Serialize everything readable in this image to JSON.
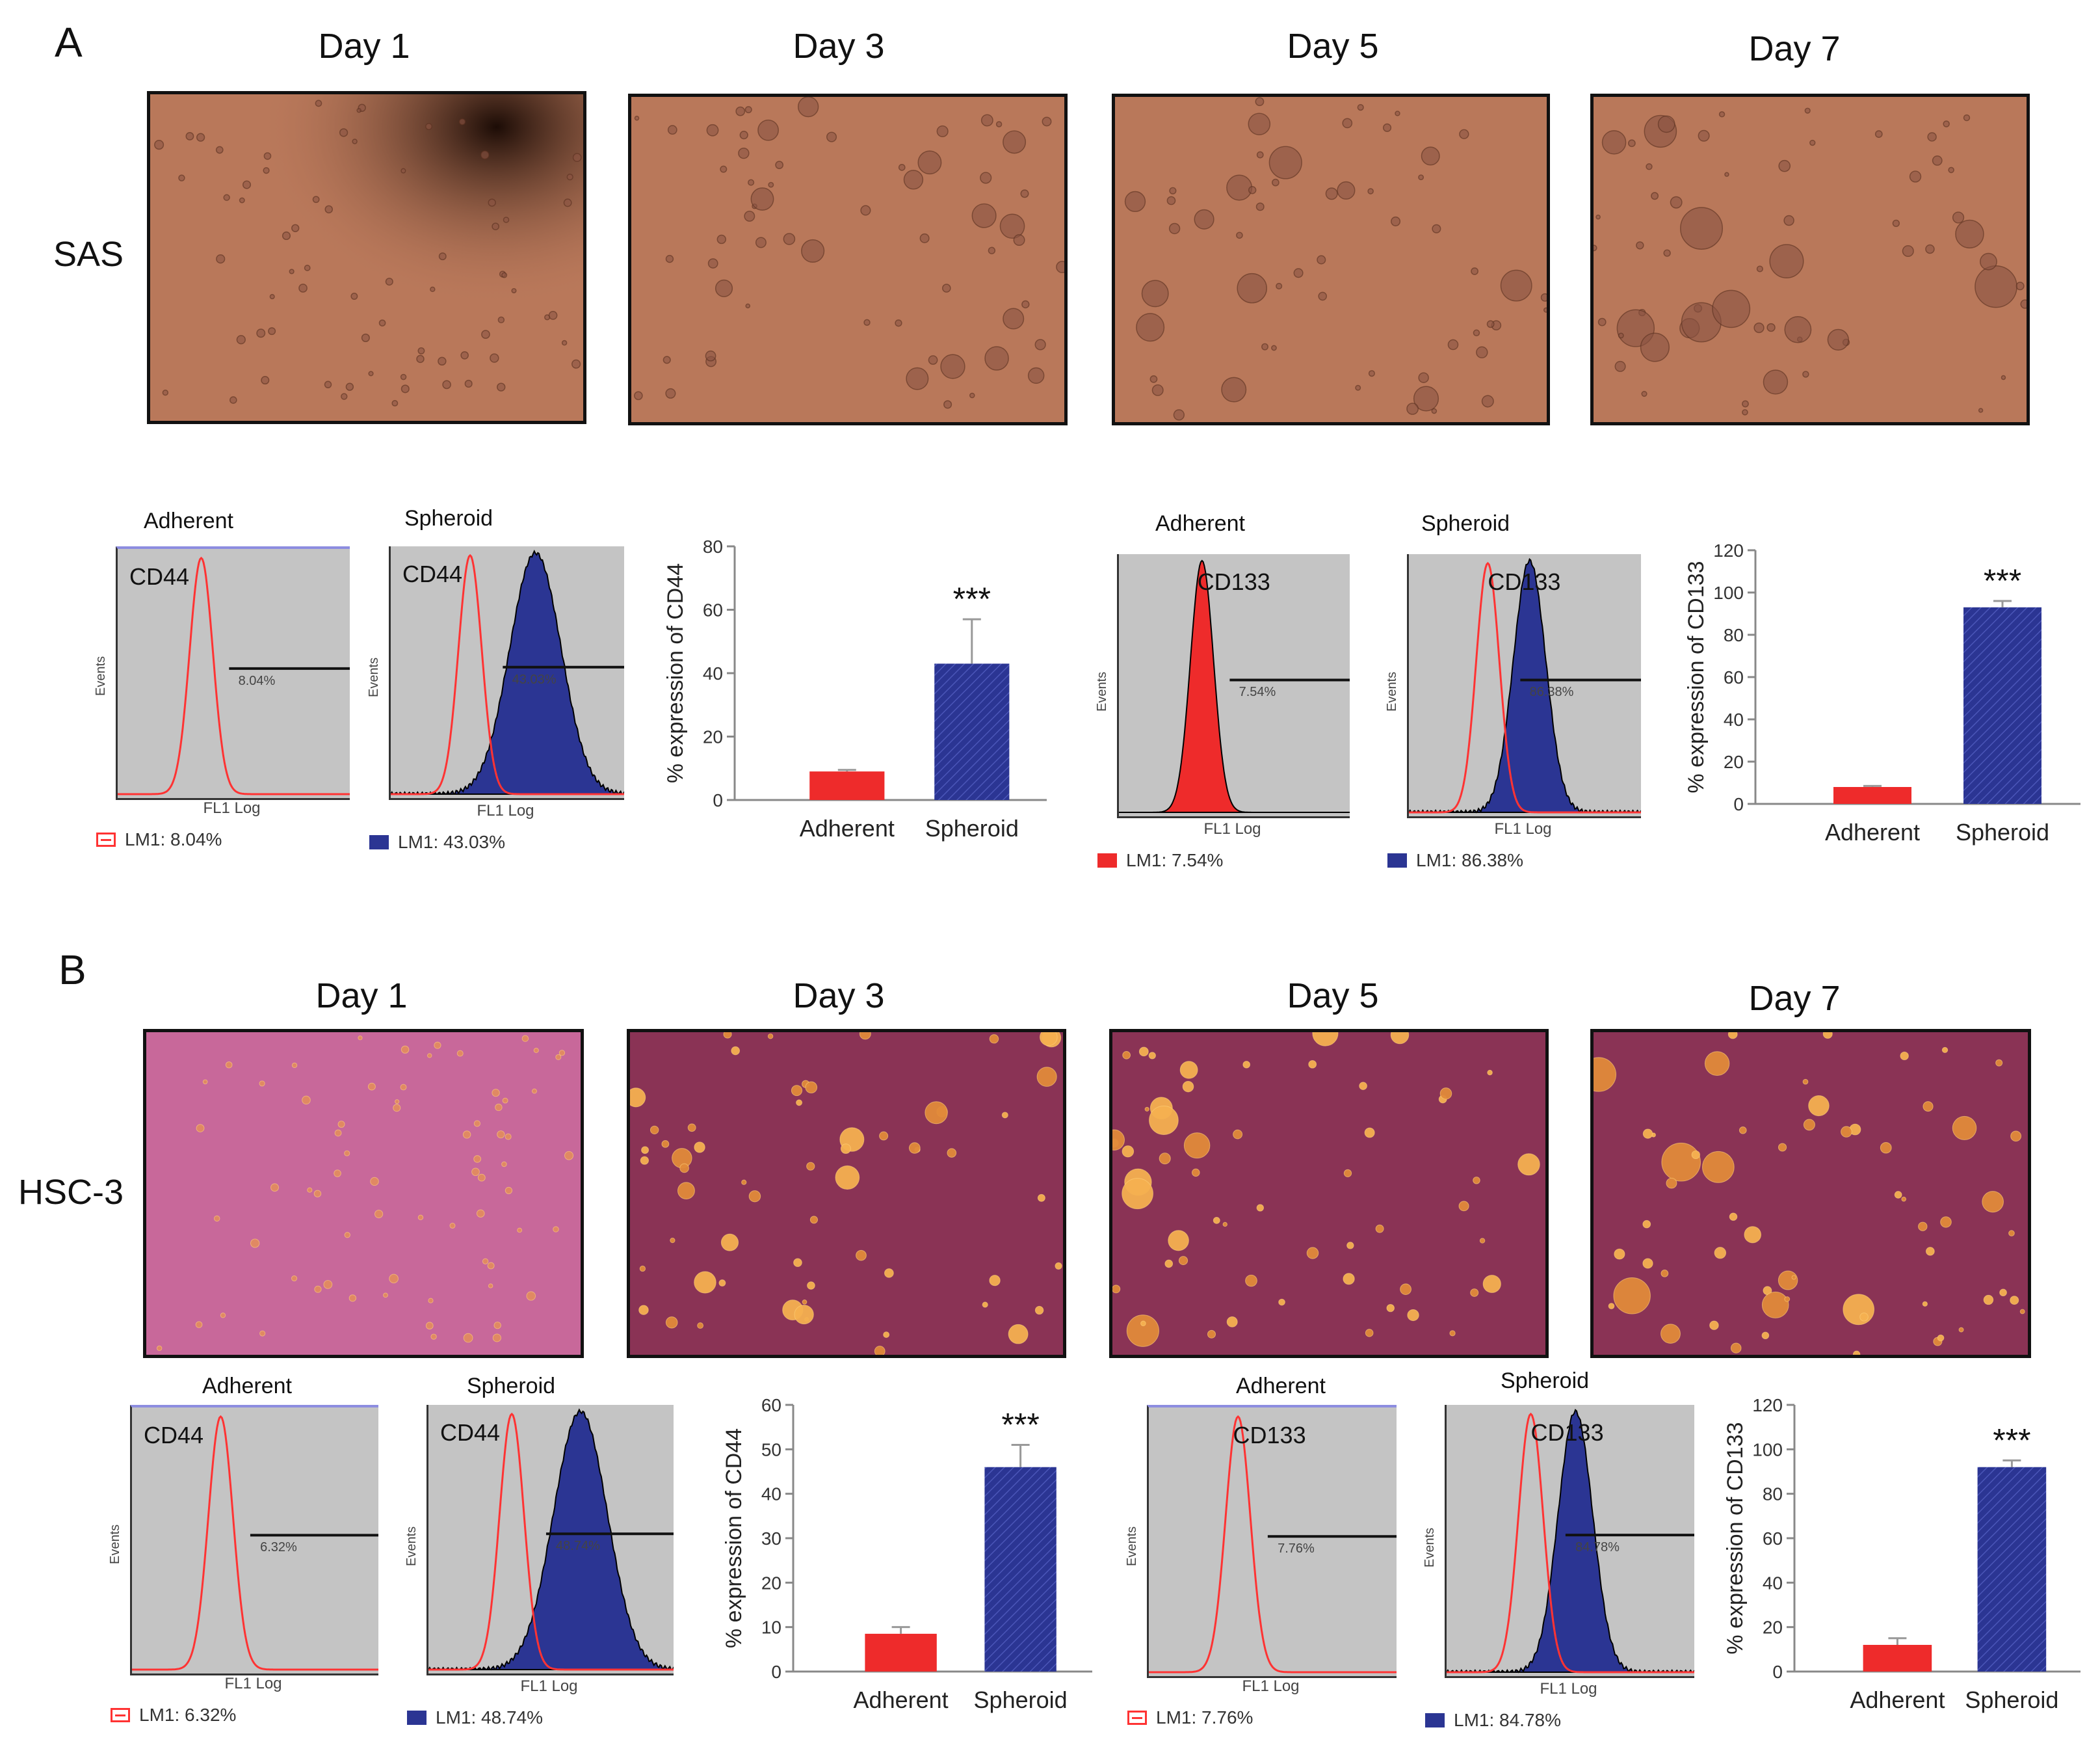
{
  "panels": [
    {
      "letter": "A",
      "cell_line": "SAS",
      "days": [
        "Day 1",
        "Day 3",
        "Day 5",
        "Day 7"
      ],
      "photo_palette": {
        "bg": "#b9785a",
        "dark": "#3a1f14",
        "blob": "#8a5442"
      },
      "flow": [
        {
          "title": "Adherent",
          "marker": "CD44",
          "gate_pct": "8.04%",
          "legend": "LM1:  8.04%",
          "fill": "none",
          "ylab": "Events",
          "xlab": "FL1 Log"
        },
        {
          "title": "Spheroid",
          "marker": "CD44",
          "gate_pct": "43.03%",
          "legend": "LM1:  43.03%",
          "fill": "blue",
          "ylab": "Events",
          "xlab": "FL1 Log"
        },
        {
          "title": "Adherent",
          "marker": "CD133",
          "gate_pct": "7.54%",
          "legend": "LM1:  7.54%",
          "fill": "red",
          "ylab": "Events",
          "xlab": "FL1 Log"
        },
        {
          "title": "Spheroid",
          "marker": "CD133",
          "gate_pct": "86.38%",
          "legend": "LM1:  86.38%",
          "fill": "blue",
          "ylab": "Events",
          "xlab": "FL1 Log"
        }
      ]
    },
    {
      "letter": "B",
      "cell_line": "HSC-3",
      "days": [
        "Day 1",
        "Day 3",
        "Day 5",
        "Day 7"
      ],
      "photo_palette": {
        "bg": "#8a3355",
        "dark": "#5a1c3c",
        "blob": "#f0a040"
      },
      "flow": [
        {
          "title": "Adherent",
          "marker": "CD44",
          "gate_pct": "6.32%",
          "legend": "LM1:  6.32%",
          "fill": "none",
          "ylab": "Events",
          "xlab": "FL1 Log"
        },
        {
          "title": "Spheroid",
          "marker": "CD44",
          "gate_pct": "48.74%",
          "legend": "LM1:  48.74%",
          "fill": "blue",
          "ylab": "Events",
          "xlab": "FL1 Log"
        },
        {
          "title": "Adherent",
          "marker": "CD133",
          "gate_pct": "7.76%",
          "legend": "LM1:  7.76%",
          "fill": "none",
          "ylab": "Events",
          "xlab": "FL1 Log"
        },
        {
          "title": "Spheroid",
          "marker": "CD133",
          "gate_pct": "84.78%",
          "legend": "LM1:  84.78%",
          "fill": "blue",
          "ylab": "Events",
          "xlab": "FL1 Log"
        }
      ]
    }
  ],
  "colors": {
    "adherent": "#ee2b2b",
    "spheroid": "#2b3593",
    "outline_red": "#f33",
    "flow_bg": "#c4c4c4"
  },
  "chart_data": [
    {
      "type": "bar",
      "categories": [
        "Adherent",
        "Spheroid"
      ],
      "values": [
        9,
        43
      ],
      "errors": [
        0.5,
        14
      ],
      "ylabel": "% expression of CD44",
      "ylim": [
        0,
        80
      ],
      "yticks": [
        0,
        20,
        40,
        60,
        80
      ],
      "annotation": "***"
    },
    {
      "type": "bar",
      "categories": [
        "Adherent",
        "Spheroid"
      ],
      "values": [
        8,
        93
      ],
      "errors": [
        0.5,
        3
      ],
      "ylabel": "% expression of CD133",
      "ylim": [
        0,
        120
      ],
      "yticks": [
        0,
        20,
        40,
        60,
        80,
        100,
        120
      ],
      "annotation": "***"
    },
    {
      "type": "bar",
      "categories": [
        "Adherent",
        "Spheroid"
      ],
      "values": [
        8.5,
        46
      ],
      "errors": [
        1.5,
        5
      ],
      "ylabel": "% expression of CD44",
      "ylim": [
        0,
        60
      ],
      "yticks": [
        0,
        10,
        20,
        30,
        40,
        50,
        60
      ],
      "annotation": "***"
    },
    {
      "type": "bar",
      "categories": [
        "Adherent",
        "Spheroid"
      ],
      "values": [
        12,
        92
      ],
      "errors": [
        3,
        3
      ],
      "ylabel": "% expression of CD133",
      "ylim": [
        0,
        120
      ],
      "yticks": [
        0,
        20,
        40,
        60,
        80,
        100,
        120
      ],
      "annotation": "***"
    }
  ]
}
